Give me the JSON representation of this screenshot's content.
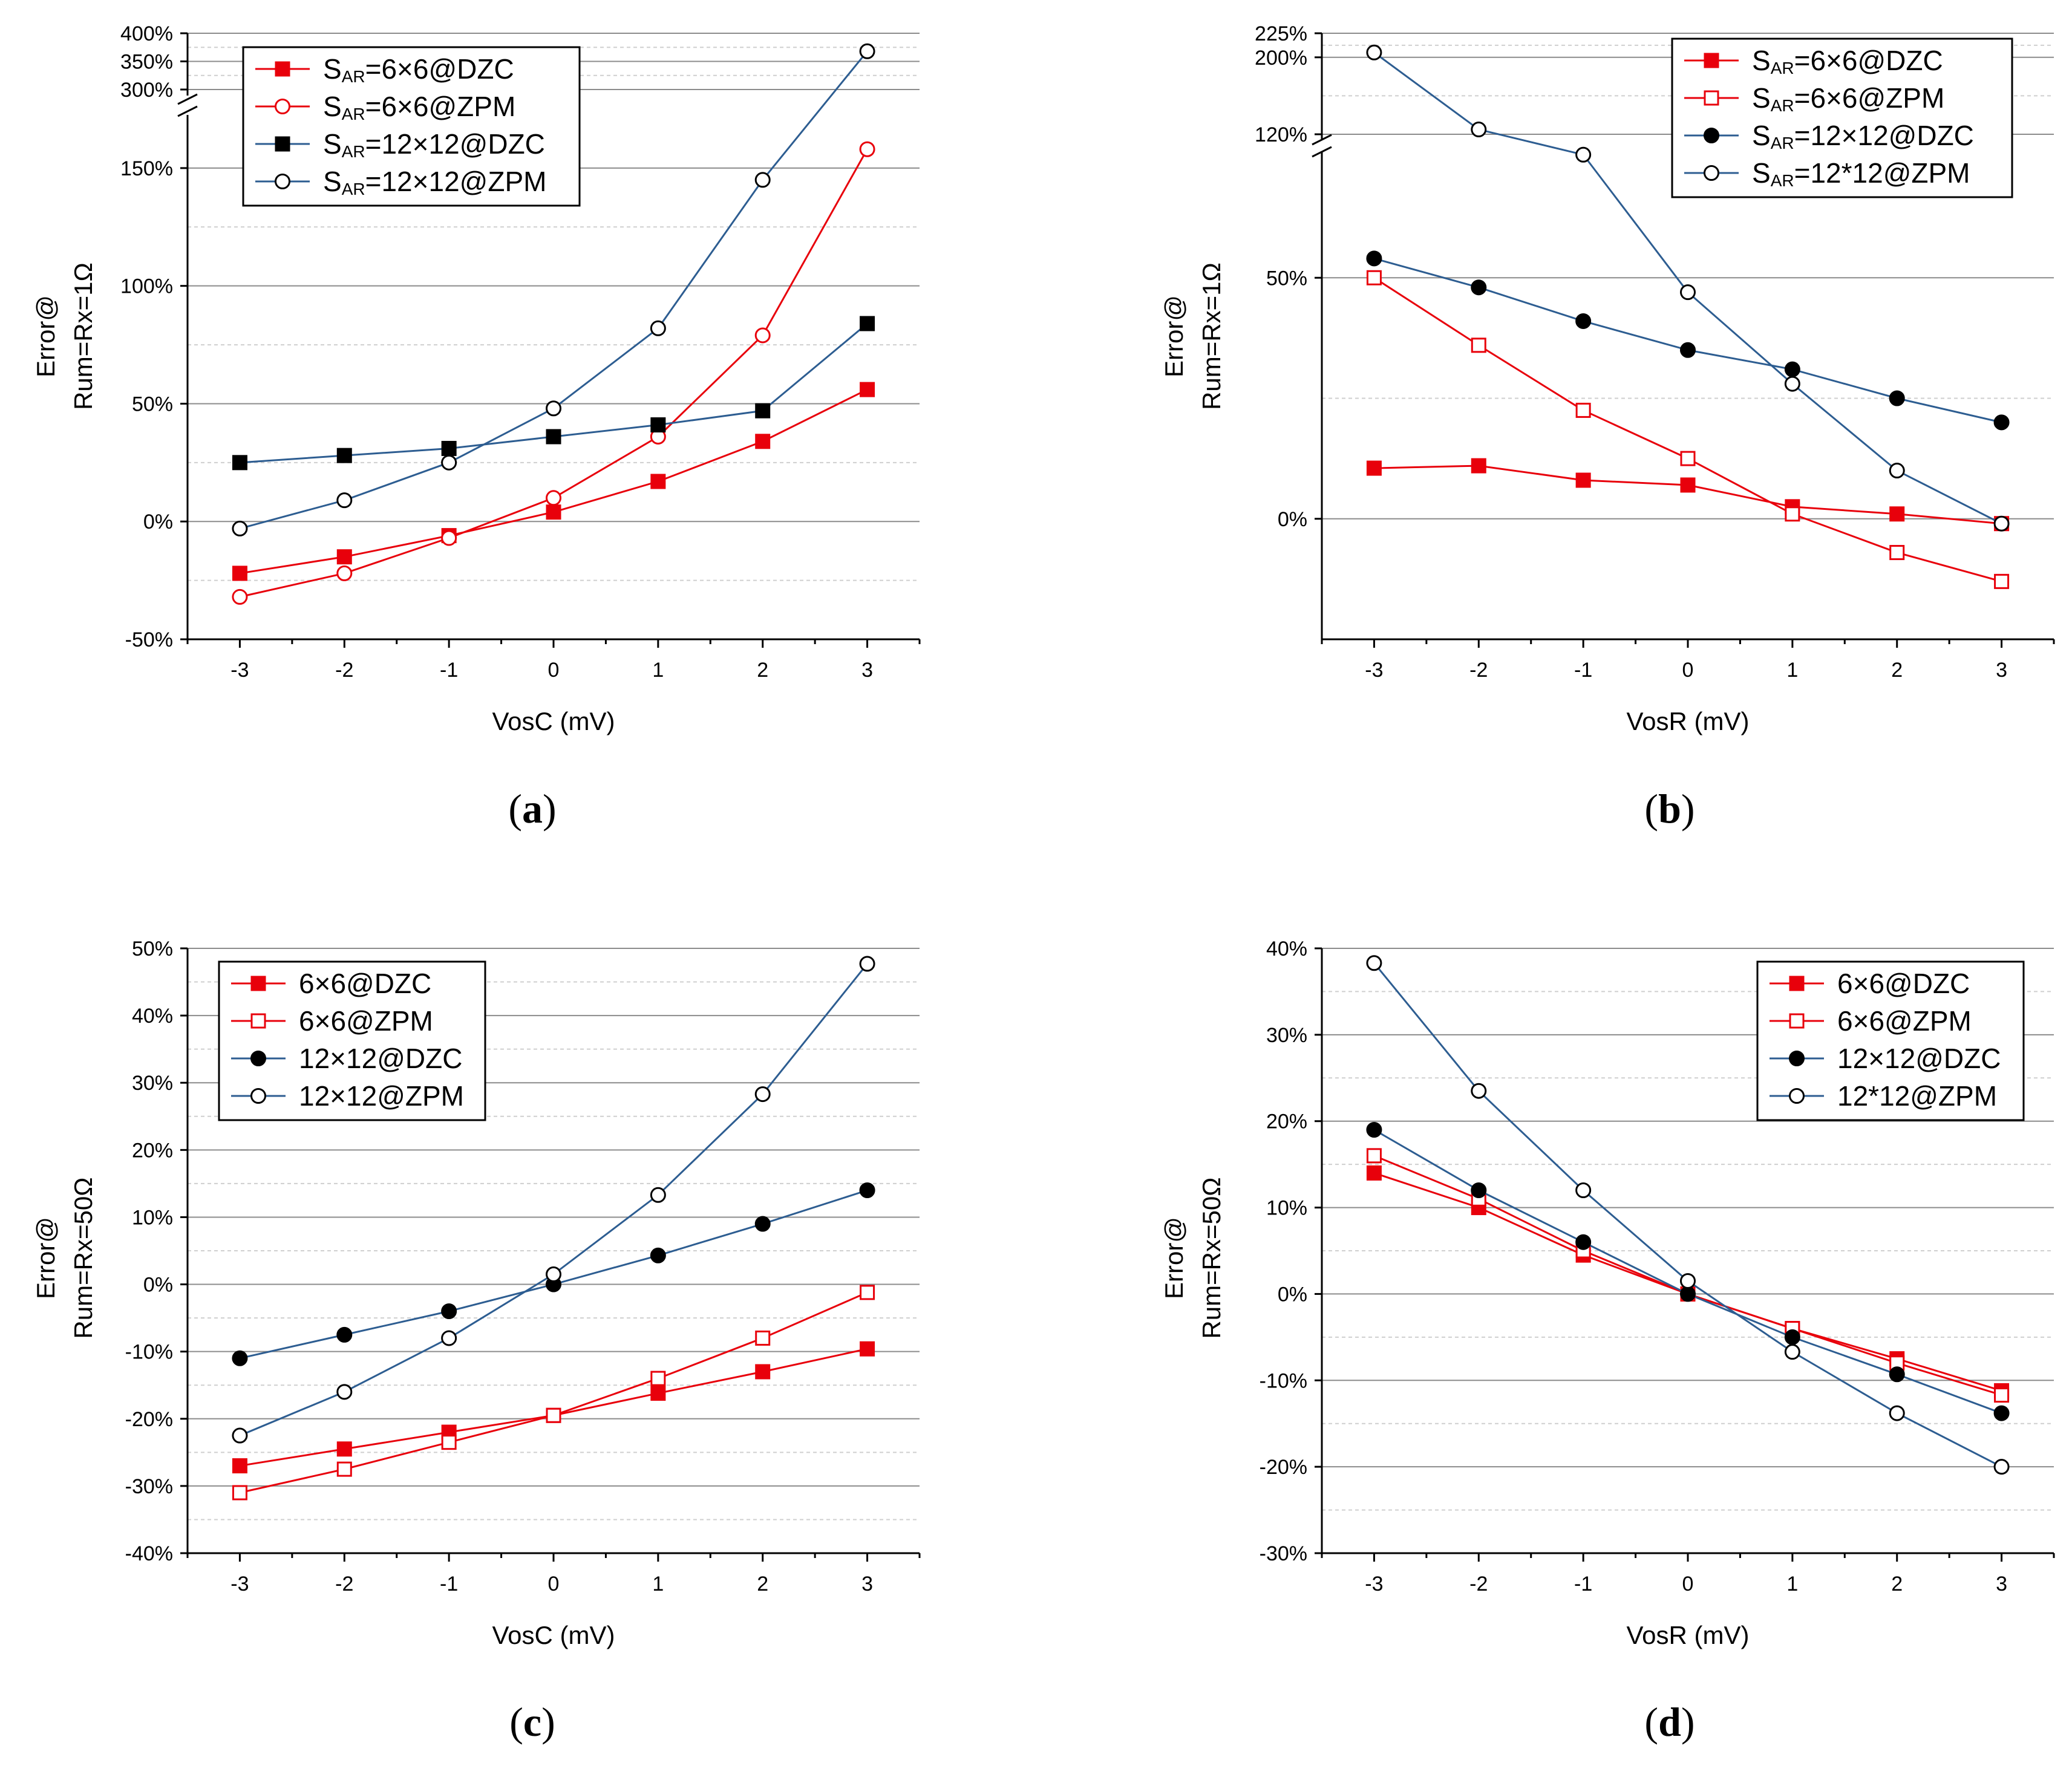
{
  "figure_title": "",
  "chart_data": [
    {
      "id": "a",
      "type": "line",
      "caption": "a",
      "x": [
        -3,
        -2,
        -1,
        0,
        1,
        2,
        3
      ],
      "xticks": [
        "-3",
        "-2",
        "-1",
        "0",
        "1",
        "2",
        "3"
      ],
      "xlabel": "VosC (mV)",
      "ylabel": [
        "Error@",
        "Rum=Rx=1Ω"
      ],
      "xlim": [
        -3.5,
        3.5
      ],
      "ylim": [
        -50,
        400
      ],
      "yticks": [
        {
          "v": -50,
          "label": "-50%"
        },
        {
          "v": 0,
          "label": "0%"
        },
        {
          "v": 50,
          "label": "50%"
        },
        {
          "v": 100,
          "label": "100%"
        },
        {
          "v": 150,
          "label": "150%"
        },
        {
          "v": 300,
          "label": "300%"
        },
        {
          "v": 350,
          "label": "350%"
        },
        {
          "v": 400,
          "label": "400%"
        }
      ],
      "axis_break": {
        "lower_max": 170,
        "upper_min": 300,
        "upper_max": 400
      },
      "legend_position": "top-left",
      "series": [
        {
          "name": "6×6@DZC",
          "prefix": "S",
          "sub": "AR",
          "label": "=6×6@DZC",
          "color": "#e8000b",
          "marker": "square",
          "filled": true,
          "values": [
            -22,
            -15,
            -6,
            4,
            17,
            34,
            56
          ]
        },
        {
          "name": "6×6@ZPM",
          "prefix": "S",
          "sub": "AR",
          "label": "=6×6@ZPM",
          "color": "#e8000b",
          "marker": "circle",
          "filled": false,
          "values": [
            -32,
            -22,
            -7,
            10,
            36,
            79,
            158
          ]
        },
        {
          "name": "12×12@DZC",
          "prefix": "S",
          "sub": "AR",
          "label": "=12×12@DZC",
          "color": "#000000",
          "line_color": "#2d5d91",
          "marker": "square",
          "filled": true,
          "values": [
            25,
            28,
            31,
            36,
            41,
            47,
            84
          ]
        },
        {
          "name": "12×12@ZPM",
          "prefix": "S",
          "sub": "AR",
          "label": "=12×12@ZPM",
          "color": "#000000",
          "line_color": "#2d5d91",
          "marker": "circle",
          "filled": false,
          "values": [
            -3,
            9,
            25,
            48,
            82,
            145,
            368
          ]
        }
      ]
    },
    {
      "id": "b",
      "type": "line",
      "caption": "b",
      "x": [
        -3,
        -2,
        -1,
        0,
        1,
        2,
        3
      ],
      "xticks": [
        "-3",
        "-2",
        "-1",
        "0",
        "1",
        "2",
        "3"
      ],
      "xlabel": "VosR (mV)",
      "ylabel": [
        "Error@",
        "Rum=Rx=1Ω"
      ],
      "xlim": [
        -3.5,
        3.5
      ],
      "ylim": [
        -25,
        225
      ],
      "yticks": [
        {
          "v": 0,
          "label": "0%"
        },
        {
          "v": 50,
          "label": "50%"
        },
        {
          "v": 120,
          "label": "120%"
        },
        {
          "v": 200,
          "label": "200%"
        },
        {
          "v": 225,
          "label": "225%"
        }
      ],
      "axis_break": {
        "lower_max": 75,
        "upper_min": 120,
        "upper_max": 225
      },
      "legend_position": "top-right",
      "series": [
        {
          "name": "6×6@DZC",
          "prefix": "S",
          "sub": "AR",
          "label": "=6×6@DZC",
          "color": "#e8000b",
          "marker": "square",
          "filled": true,
          "values": [
            10.5,
            11,
            8,
            7,
            2.5,
            1,
            -1
          ]
        },
        {
          "name": "6×6@ZPM",
          "prefix": "S",
          "sub": "AR",
          "label": "=6×6@ZPM",
          "color": "#e8000b",
          "marker": "square",
          "filled": false,
          "values": [
            50,
            36,
            22.5,
            12.5,
            1,
            -7,
            -13
          ]
        },
        {
          "name": "12×12@DZC",
          "prefix": "S",
          "sub": "AR",
          "label": "=12×12@DZC",
          "color": "#000000",
          "line_color": "#2d5d91",
          "marker": "circle",
          "filled": true,
          "values": [
            54,
            48,
            41,
            35,
            31,
            25,
            20
          ]
        },
        {
          "name": "12*12@ZPM",
          "prefix": "S",
          "sub": "AR",
          "label": "=12*12@ZPM",
          "color": "#000000",
          "line_color": "#2d5d91",
          "marker": "circle",
          "filled": false,
          "values": [
            205,
            125,
            80,
            47,
            28,
            10,
            -1
          ]
        }
      ]
    },
    {
      "id": "c",
      "type": "line",
      "caption": "c",
      "x": [
        -3,
        -2,
        -1,
        0,
        1,
        2,
        3
      ],
      "xticks": [
        "-3",
        "-2",
        "-1",
        "0",
        "1",
        "2",
        "3"
      ],
      "xlabel": "VosC (mV)",
      "ylabel": [
        "Error@",
        "Rum=Rx=50Ω"
      ],
      "xlim": [
        -3.5,
        3.5
      ],
      "ylim": [
        -40,
        50
      ],
      "yticks": [
        {
          "v": -40,
          "label": "-40%"
        },
        {
          "v": -30,
          "label": "-30%"
        },
        {
          "v": -20,
          "label": "-20%"
        },
        {
          "v": -10,
          "label": "-10%"
        },
        {
          "v": 0,
          "label": "0%"
        },
        {
          "v": 10,
          "label": "10%"
        },
        {
          "v": 20,
          "label": "20%"
        },
        {
          "v": 30,
          "label": "30%"
        },
        {
          "v": 40,
          "label": "40%"
        },
        {
          "v": 50,
          "label": "50%"
        }
      ],
      "legend_position": "top-left",
      "series": [
        {
          "name": "6×6@DZC",
          "label": "6×6@DZC",
          "color": "#e8000b",
          "marker": "square",
          "filled": true,
          "values": [
            -27,
            -24.5,
            -22,
            -19.5,
            -16.2,
            -13,
            -9.6
          ]
        },
        {
          "name": "6×6@ZPM",
          "label": "6×6@ZPM",
          "color": "#e8000b",
          "marker": "square",
          "filled": false,
          "values": [
            -31,
            -27.5,
            -23.5,
            -19.5,
            -14,
            -8,
            -1.2
          ]
        },
        {
          "name": "12×12@DZC",
          "label": "12×12@DZC",
          "color": "#000000",
          "line_color": "#2d5d91",
          "marker": "circle",
          "filled": true,
          "values": [
            -11,
            -7.5,
            -4,
            0,
            4.3,
            9,
            14
          ]
        },
        {
          "name": "12×12@ZPM",
          "label": "12×12@ZPM",
          "color": "#000000",
          "line_color": "#2d5d91",
          "marker": "circle",
          "filled": false,
          "values": [
            -22.5,
            -16,
            -8,
            1.5,
            13.3,
            28.3,
            47.7
          ]
        }
      ]
    },
    {
      "id": "d",
      "type": "line",
      "caption": "d",
      "x": [
        -3,
        -2,
        -1,
        0,
        1,
        2,
        3
      ],
      "xticks": [
        "-3",
        "-2",
        "-1",
        "0",
        "1",
        "2",
        "3"
      ],
      "xlabel": "VosR (mV)",
      "ylabel": [
        "Error@",
        "Rum=Rx=50Ω"
      ],
      "xlim": [
        -3.5,
        3.5
      ],
      "ylim": [
        -30,
        40
      ],
      "yticks": [
        {
          "v": -30,
          "label": "-30%"
        },
        {
          "v": -20,
          "label": "-20%"
        },
        {
          "v": -10,
          "label": "-10%"
        },
        {
          "v": 0,
          "label": "0%"
        },
        {
          "v": 10,
          "label": "10%"
        },
        {
          "v": 20,
          "label": "20%"
        },
        {
          "v": 30,
          "label": "30%"
        },
        {
          "v": 40,
          "label": "40%"
        }
      ],
      "legend_position": "top-right",
      "series": [
        {
          "name": "6×6@DZC",
          "label": "6×6@DZC",
          "color": "#e8000b",
          "marker": "square",
          "filled": true,
          "values": [
            14,
            10,
            4.5,
            0,
            -4,
            -7.5,
            -11.2
          ]
        },
        {
          "name": "6×6@ZPM",
          "label": "6×6@ZPM",
          "color": "#e8000b",
          "marker": "square",
          "filled": false,
          "values": [
            16,
            11,
            5,
            0,
            -4,
            -8,
            -11.7
          ]
        },
        {
          "name": "12×12@DZC",
          "label": "12×12@DZC",
          "color": "#000000",
          "line_color": "#2d5d91",
          "marker": "circle",
          "filled": true,
          "values": [
            19,
            12,
            6,
            0,
            -5,
            -9.3,
            -13.8
          ]
        },
        {
          "name": "12*12@ZPM",
          "label": "12*12@ZPM",
          "color": "#000000",
          "line_color": "#2d5d91",
          "marker": "circle",
          "filled": false,
          "values": [
            38.3,
            23.5,
            12,
            1.5,
            -6.7,
            -13.8,
            -20
          ]
        }
      ]
    }
  ]
}
